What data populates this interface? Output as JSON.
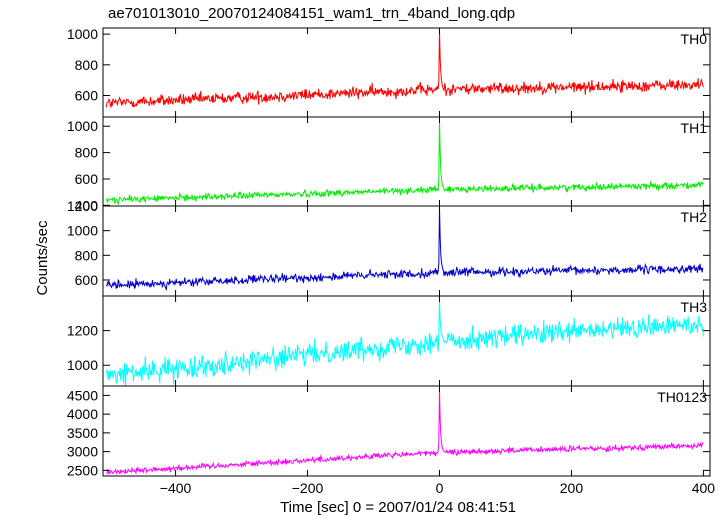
{
  "chart_data": {
    "type": "line",
    "title": "ae701013010_20070124084151_wam1_trn_4band_long.qdp",
    "xlabel": "Time [sec] 0 = 2007/01/24 08:41:51",
    "ylabel": "Counts/sec",
    "xlim": [
      -510,
      410
    ],
    "x_ticks": [
      -400,
      -200,
      0,
      200,
      400
    ],
    "x_start": -505,
    "x_end": 400,
    "x_step": 1,
    "peak_x": 0,
    "panels": [
      {
        "label": "TH0",
        "color": "#ff0000",
        "ylim": [
          460,
          1040
        ],
        "y_ticks": [
          600,
          800,
          1000
        ],
        "baseline_start": 550,
        "baseline_mid": 640,
        "baseline_end": 670,
        "noise": 28,
        "peak_value": 1030
      },
      {
        "label": "TH1",
        "color": "#00ee00",
        "ylim": [
          395,
          1070
        ],
        "y_ticks": [
          400,
          600,
          800,
          1000
        ],
        "baseline_start": 440,
        "baseline_mid": 520,
        "baseline_end": 555,
        "noise": 18,
        "peak_value": 1060
      },
      {
        "label": "TH2",
        "color": "#0000cc",
        "ylim": [
          470,
          1200
        ],
        "y_ticks": [
          600,
          800,
          1000,
          1200
        ],
        "baseline_start": 555,
        "baseline_mid": 660,
        "baseline_end": 690,
        "noise": 25,
        "peak_value": 1190
      },
      {
        "label": "TH3",
        "color": "#00ffff",
        "ylim": [
          880,
          1400
        ],
        "y_ticks": [
          1000,
          1200
        ],
        "baseline_start": 940,
        "baseline_mid": 1140,
        "baseline_end": 1240,
        "noise": 45,
        "peak_value": 1390
      },
      {
        "label": "TH0123",
        "color": "#ff00ff",
        "ylim": [
          2350,
          4750
        ],
        "y_ticks": [
          2500,
          3000,
          3500,
          4000,
          4500
        ],
        "baseline_start": 2450,
        "baseline_mid": 2980,
        "baseline_end": 3160,
        "noise": 55,
        "peak_value": 4680
      }
    ]
  }
}
